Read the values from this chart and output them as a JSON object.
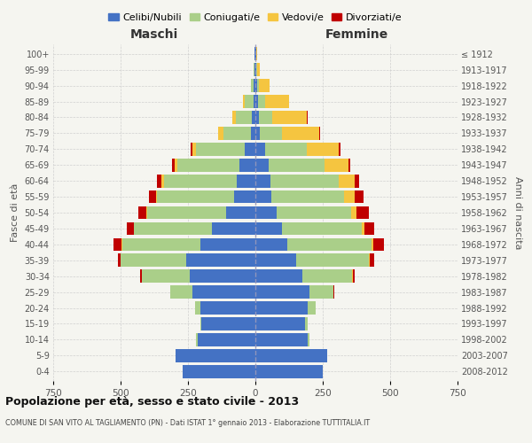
{
  "age_groups": [
    "0-4",
    "5-9",
    "10-14",
    "15-19",
    "20-24",
    "25-29",
    "30-34",
    "35-39",
    "40-44",
    "45-49",
    "50-54",
    "55-59",
    "60-64",
    "65-69",
    "70-74",
    "75-79",
    "80-84",
    "85-89",
    "90-94",
    "95-99",
    "100+"
  ],
  "birth_years": [
    "2008-2012",
    "2003-2007",
    "1998-2002",
    "1993-1997",
    "1988-1992",
    "1983-1987",
    "1978-1982",
    "1973-1977",
    "1968-1972",
    "1963-1967",
    "1958-1962",
    "1953-1957",
    "1948-1952",
    "1943-1947",
    "1938-1942",
    "1933-1937",
    "1928-1932",
    "1923-1927",
    "1918-1922",
    "1913-1917",
    "≤ 1912"
  ],
  "males": {
    "celibi": [
      270,
      295,
      215,
      200,
      205,
      235,
      245,
      255,
      205,
      160,
      110,
      80,
      70,
      60,
      40,
      18,
      12,
      8,
      5,
      3,
      2
    ],
    "coniugati": [
      0,
      0,
      5,
      5,
      20,
      80,
      175,
      245,
      290,
      290,
      290,
      285,
      270,
      230,
      180,
      100,
      60,
      30,
      10,
      2,
      0
    ],
    "vedovi": [
      0,
      0,
      0,
      0,
      0,
      0,
      1,
      1,
      2,
      2,
      3,
      5,
      8,
      8,
      15,
      20,
      15,
      8,
      3,
      0,
      0
    ],
    "divorziati": [
      0,
      0,
      0,
      0,
      0,
      2,
      5,
      10,
      30,
      25,
      30,
      25,
      18,
      10,
      5,
      0,
      0,
      0,
      0,
      0,
      0
    ]
  },
  "females": {
    "nubili": [
      250,
      265,
      195,
      185,
      195,
      200,
      175,
      150,
      120,
      100,
      80,
      60,
      55,
      50,
      35,
      18,
      12,
      10,
      5,
      3,
      2
    ],
    "coniugate": [
      0,
      0,
      5,
      8,
      30,
      90,
      185,
      270,
      310,
      295,
      275,
      270,
      255,
      205,
      155,
      80,
      50,
      25,
      8,
      2,
      0
    ],
    "vedove": [
      0,
      0,
      0,
      0,
      0,
      0,
      2,
      5,
      8,
      10,
      20,
      40,
      60,
      90,
      120,
      140,
      130,
      90,
      40,
      10,
      3
    ],
    "divorziate": [
      0,
      0,
      0,
      0,
      0,
      2,
      5,
      15,
      40,
      35,
      45,
      30,
      15,
      8,
      5,
      2,
      2,
      0,
      0,
      0,
      0
    ]
  },
  "colors": {
    "celibi": "#4472C4",
    "coniugati": "#AACF89",
    "vedovi": "#F5C540",
    "divorziati": "#C00000"
  },
  "legend_labels": [
    "Celibi/Nubili",
    "Coniugati/e",
    "Vedovi/e",
    "Divorziati/e"
  ],
  "title": "Popolazione per età, sesso e stato civile - 2013",
  "subtitle": "COMUNE DI SAN VITO AL TAGLIAMENTO (PN) - Dati ISTAT 1° gennaio 2013 - Elaborazione TUTTITALIA.IT",
  "xlabel_left": "Maschi",
  "xlabel_right": "Femmine",
  "ylabel_left": "Fasce di età",
  "ylabel_right": "Anni di nascita",
  "xlim": 750,
  "bg_color": "#f5f5f0",
  "grid_color": "#cccccc"
}
